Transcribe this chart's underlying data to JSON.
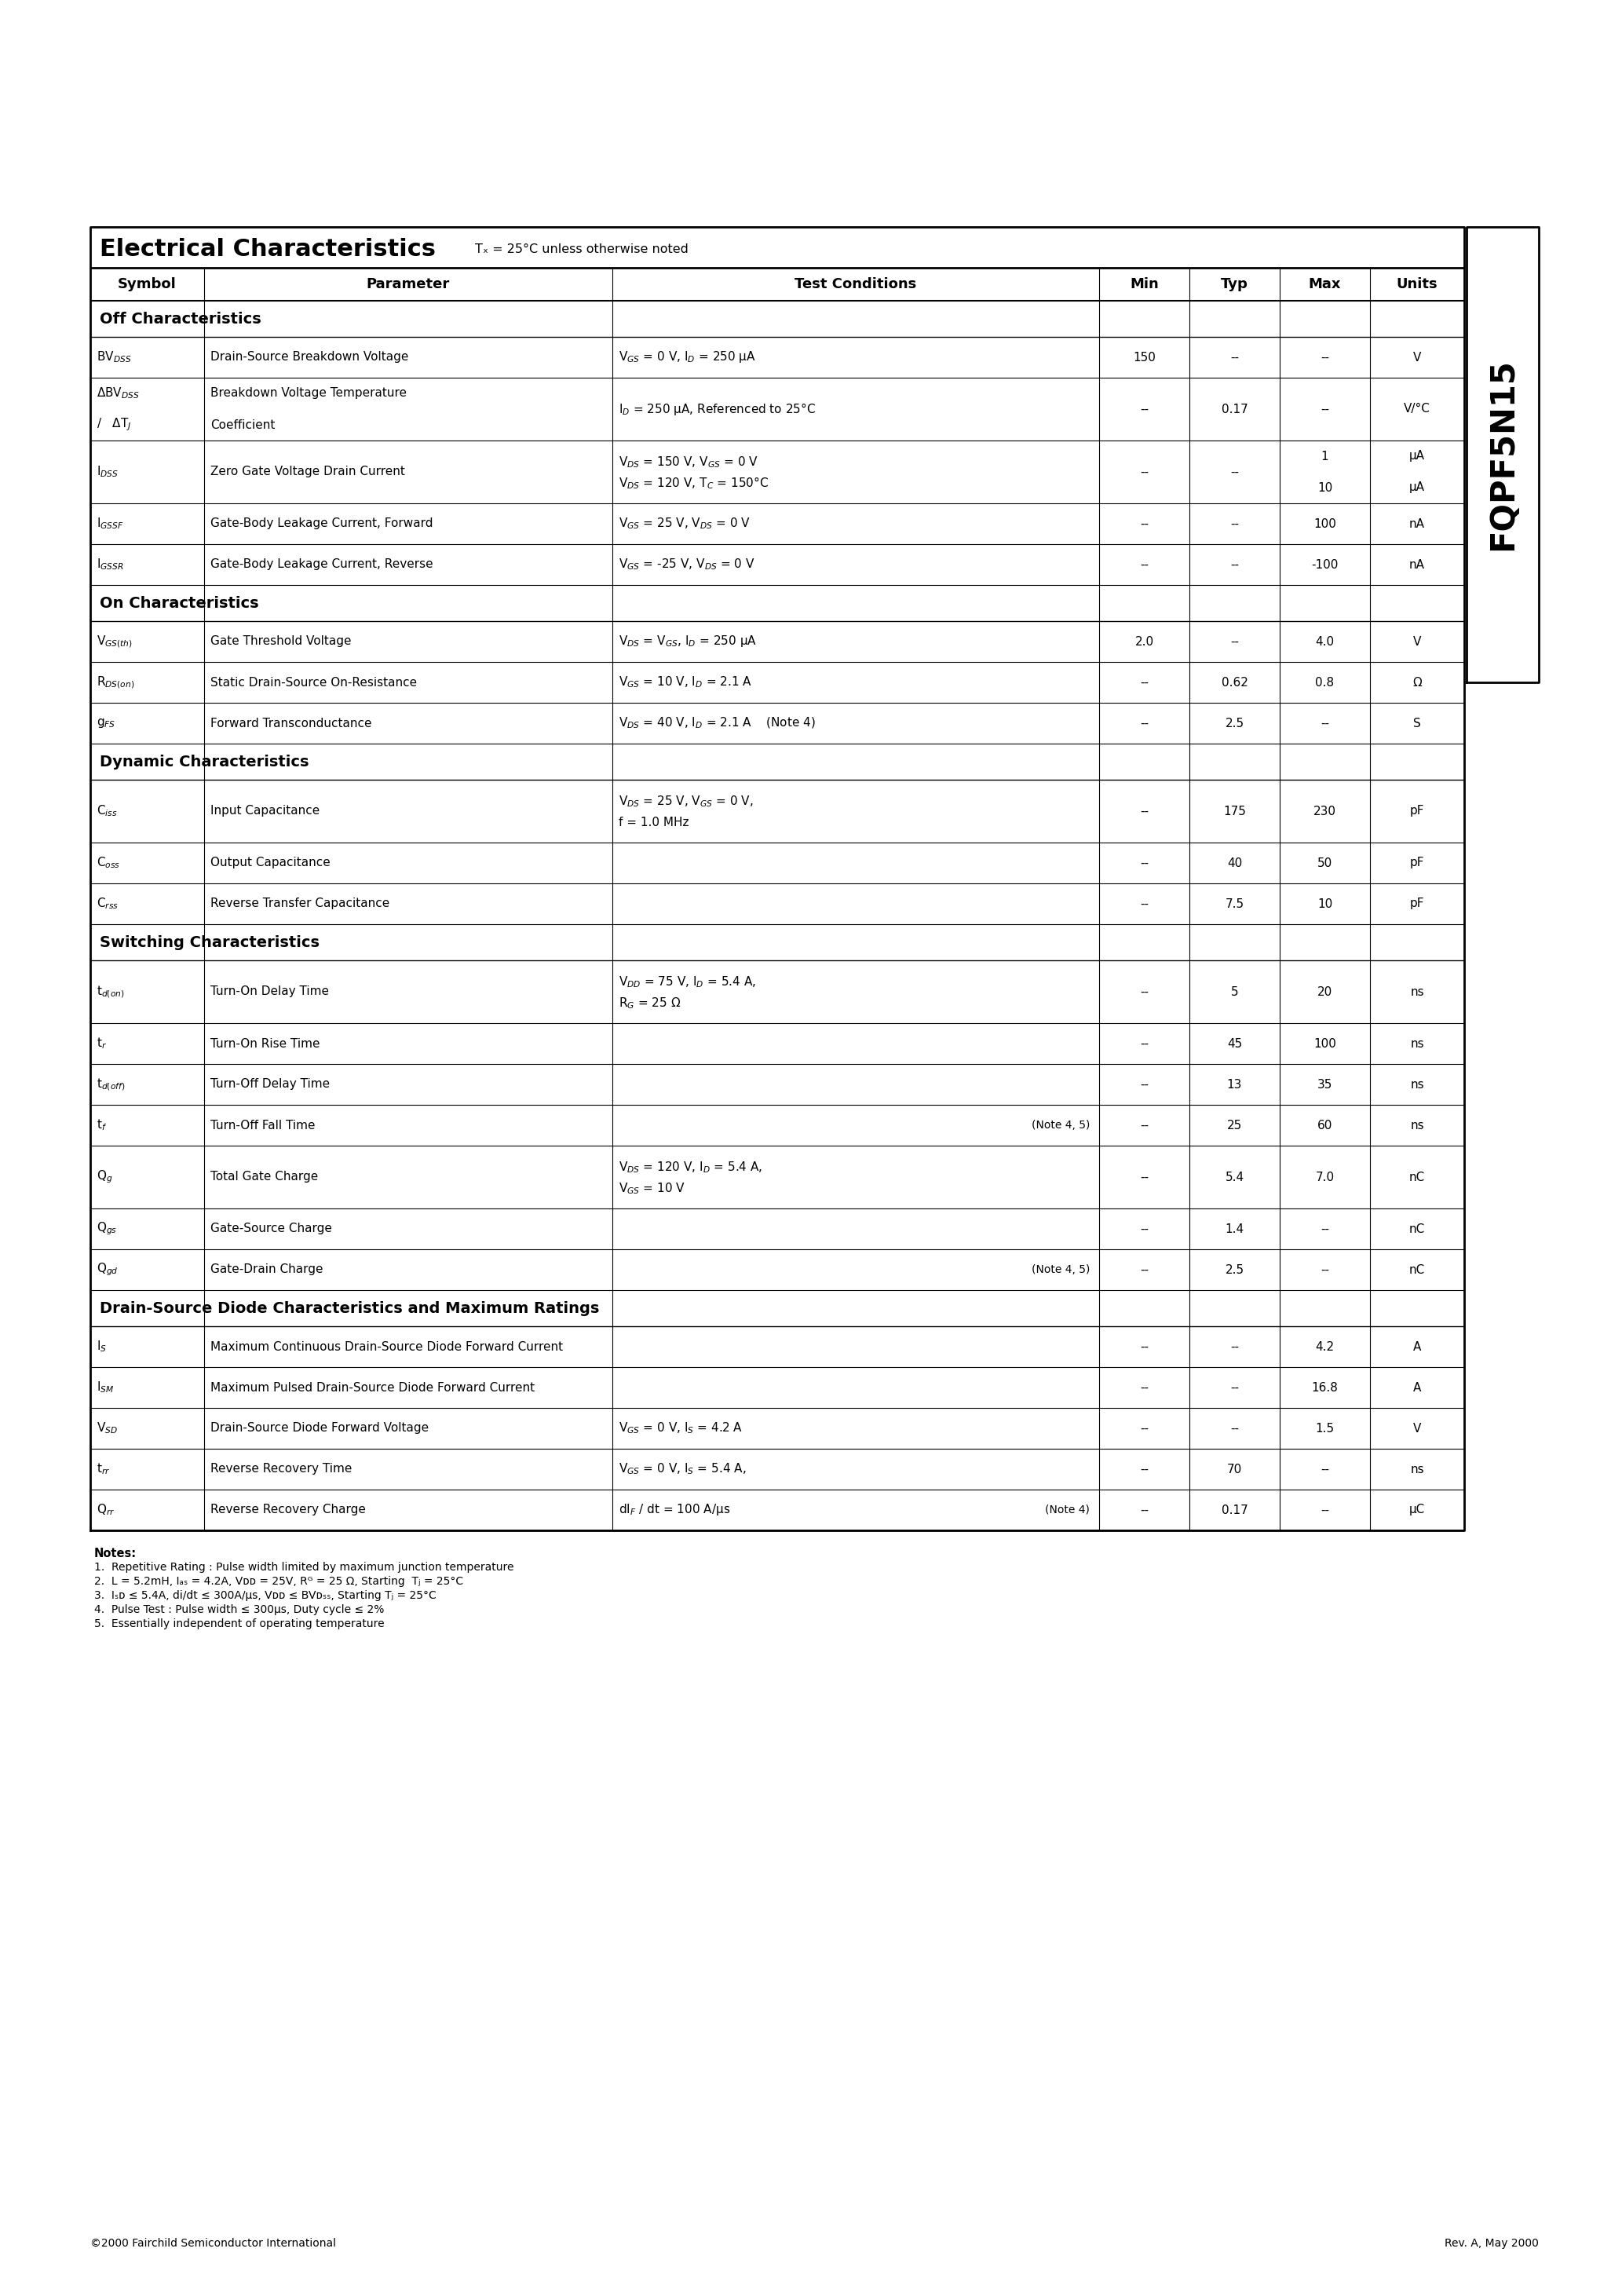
{
  "title": "Electrical Characteristics",
  "title_note": "Tₓ = 25°C unless otherwise noted",
  "part_number": "FQPF5N15",
  "footer_left": "©2000 Fairchild Semiconductor International",
  "footer_right": "Rev. A, May 2000"
}
